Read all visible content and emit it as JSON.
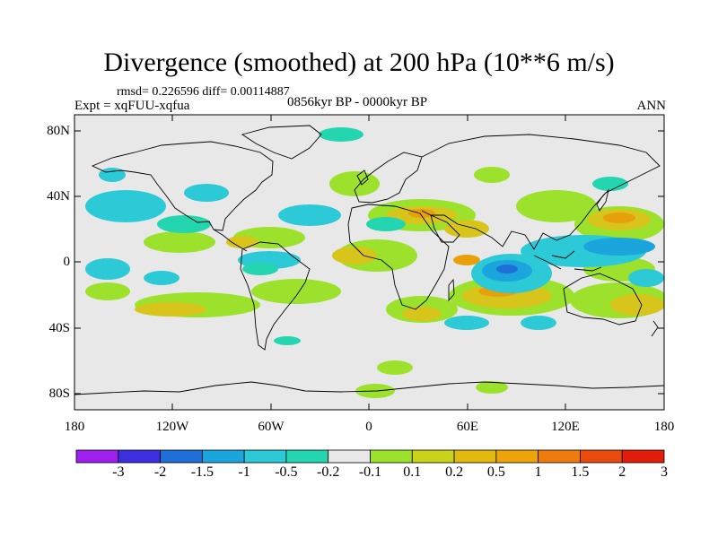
{
  "title": "Divergence (smoothed) at 200 hPa (10**6 m/s)",
  "stats": "rmsd= 0.226596 diff= 0.00114887",
  "experiment": "Expt = xqFUU-xqfua",
  "period": "0856kyr BP - 0000kyr BP",
  "season": "ANN",
  "lat_labels": [
    "80N",
    "40N",
    "0",
    "40S",
    "80S"
  ],
  "lon_labels": [
    "180",
    "120W",
    "60W",
    "0",
    "60E",
    "120E",
    "180"
  ],
  "colorbar": {
    "labels": [
      "-3",
      "-2",
      "-1.5",
      "-1",
      "-0.5",
      "-0.2",
      "-0.1",
      "0.1",
      "0.2",
      "0.5",
      "1",
      "1.5",
      "2",
      "3"
    ],
    "colors": [
      "#9f1fef",
      "#3b2fe0",
      "#1f6fd8",
      "#1aa6dc",
      "#2cc9d6",
      "#23d6b0",
      "#e8e8e8",
      "#9ce12b",
      "#c9d319",
      "#e2b90d",
      "#eea308",
      "#ee7c0c",
      "#ea4b0c",
      "#e31d0c"
    ]
  },
  "colors": {
    "background_field": "#e8e8e8",
    "coastline": "#000000"
  }
}
